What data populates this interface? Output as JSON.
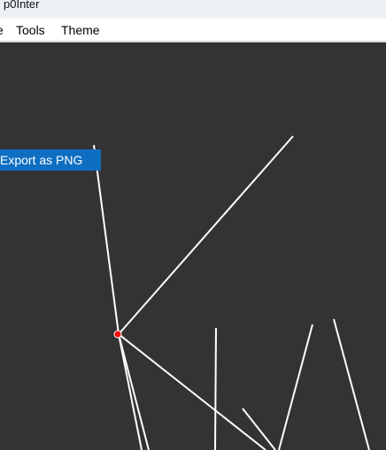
{
  "window": {
    "title": "p0Inter"
  },
  "menubar": {
    "partial_item": "e",
    "tools_label": "Tools",
    "theme_label": "Theme"
  },
  "context_menu": {
    "export_label": "Export as PNG"
  },
  "colors": {
    "canvas_bg": "#333333",
    "stroke": "#ffffff",
    "point_fill": "#ff0000",
    "menu_highlight": "#0e6ec2",
    "titlebar_bg": "#edf1f5"
  }
}
